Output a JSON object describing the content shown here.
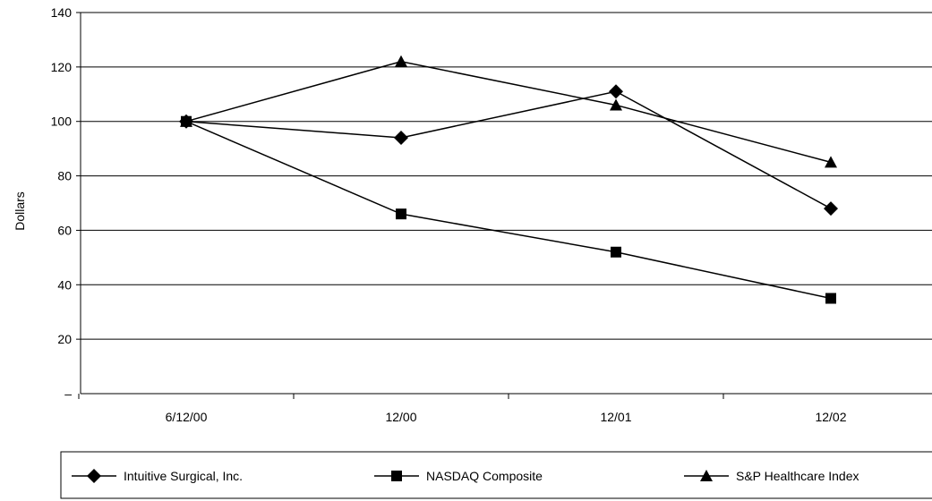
{
  "chart_data": {
    "type": "line",
    "categories": [
      "6/12/00",
      "12/00",
      "12/01",
      "12/02"
    ],
    "series": [
      {
        "name": "Intuitive Surgical, Inc.",
        "values": [
          100,
          94,
          111,
          68
        ],
        "marker": "diamond"
      },
      {
        "name": "NASDAQ Composite",
        "values": [
          100,
          66,
          52,
          35
        ],
        "marker": "square"
      },
      {
        "name": "S&P Healthcare Index",
        "values": [
          100,
          122,
          106,
          85
        ],
        "marker": "triangle"
      }
    ],
    "ylabel": "Dollars",
    "ylim": [
      0,
      140
    ],
    "yticks": [
      140,
      120,
      100,
      80,
      60,
      40,
      20
    ],
    "yzero_label": "–",
    "grid": true,
    "legend_position": "bottom",
    "colors": {
      "line": "#000000",
      "grid": "#000000"
    }
  }
}
